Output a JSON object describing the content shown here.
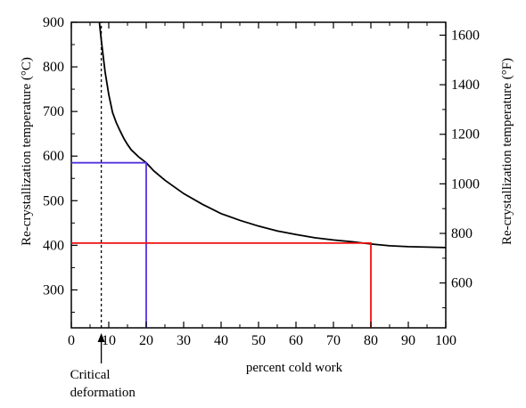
{
  "chart_data": {
    "type": "line",
    "title": "",
    "xlabel": "percent cold work",
    "ylabel_left": "Re-crystallization temperature (°C)",
    "ylabel_right": "Re-crystallization temperature (°F)",
    "xlim": [
      0,
      100
    ],
    "ylim_left": [
      215,
      900
    ],
    "ylim_right": [
      419,
      1652
    ],
    "x_ticks": [
      0,
      10,
      20,
      30,
      40,
      50,
      60,
      70,
      80,
      90,
      100
    ],
    "y_ticks_left": [
      300,
      400,
      500,
      600,
      700,
      800,
      900
    ],
    "y_ticks_right": [
      600,
      800,
      1000,
      1200,
      1400,
      1600
    ],
    "grid": false,
    "legend": "none",
    "series": [
      {
        "color": "#000000",
        "style": "solid",
        "x": [
          7.5,
          8,
          9,
          10,
          11,
          12,
          13,
          14,
          15,
          16,
          18,
          20,
          22,
          25,
          30,
          35,
          40,
          45,
          50,
          55,
          60,
          65,
          70,
          75,
          80,
          85,
          90,
          95,
          100
        ],
        "y": [
          900,
          860,
          790,
          738,
          698,
          675,
          657,
          640,
          626,
          614,
          598,
          585,
          567,
          546,
          516,
          492,
          471,
          456,
          443,
          432,
          424,
          417,
          412,
          408,
          403,
          399,
          397,
          396,
          395
        ]
      },
      {
        "color": "#000000",
        "style": "dotted",
        "x": [
          8,
          8
        ],
        "y": [
          215,
          900
        ]
      },
      {
        "color": "#5533dd",
        "style": "solid",
        "x": [
          0,
          20,
          20
        ],
        "y": [
          585,
          585,
          215
        ]
      },
      {
        "color": "#ee1111",
        "style": "solid",
        "x": [
          0,
          80,
          80
        ],
        "y": [
          405,
          405,
          215
        ]
      }
    ],
    "annotations": [
      {
        "text_lines": [
          "Critical",
          "deformation"
        ],
        "x": 8
      }
    ]
  }
}
